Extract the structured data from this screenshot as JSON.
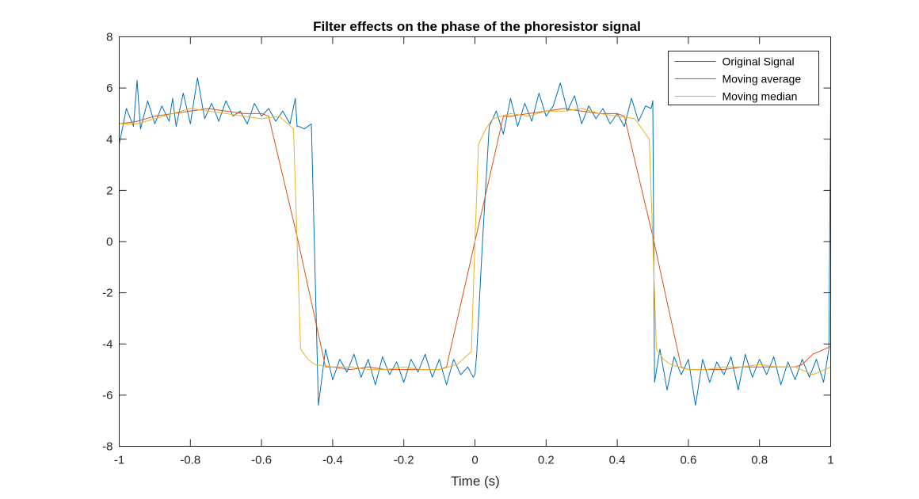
{
  "chart_data": {
    "type": "line",
    "title": "Filter effects on the phase of the phoresistor signal",
    "xlabel": "Time (s)",
    "ylabel": "",
    "xlim": [
      -1,
      1
    ],
    "ylim": [
      -8,
      8
    ],
    "xticks": [
      -1,
      -0.8,
      -0.6,
      -0.4,
      -0.2,
      0,
      0.2,
      0.4,
      0.6,
      0.8,
      1
    ],
    "yticks": [
      -8,
      -6,
      -4,
      -2,
      0,
      2,
      4,
      6,
      8
    ],
    "xtick_labels": [
      "-1",
      "-0.8",
      "-0.6",
      "-0.4",
      "-0.2",
      "0",
      "0.2",
      "0.4",
      "0.6",
      "0.8",
      "1"
    ],
    "ytick_labels": [
      "-8",
      "-6",
      "-4",
      "-2",
      "0",
      "2",
      "4",
      "6",
      "8"
    ],
    "grid": false,
    "legend_position": "top-right",
    "series": [
      {
        "name": "Original Signal",
        "color": "#0072BD",
        "x": [
          -1,
          -0.98,
          -0.96,
          -0.95,
          -0.94,
          -0.92,
          -0.9,
          -0.88,
          -0.86,
          -0.85,
          -0.84,
          -0.82,
          -0.8,
          -0.78,
          -0.76,
          -0.74,
          -0.72,
          -0.7,
          -0.68,
          -0.66,
          -0.64,
          -0.62,
          -0.6,
          -0.58,
          -0.56,
          -0.54,
          -0.52,
          -0.505,
          -0.5,
          -0.495,
          -0.48,
          -0.46,
          -0.44,
          -0.42,
          -0.4,
          -0.38,
          -0.36,
          -0.34,
          -0.32,
          -0.3,
          -0.28,
          -0.26,
          -0.24,
          -0.22,
          -0.2,
          -0.18,
          -0.16,
          -0.14,
          -0.12,
          -0.1,
          -0.08,
          -0.06,
          -0.04,
          -0.02,
          -0.005,
          0,
          0.005,
          0.02,
          0.04,
          0.06,
          0.08,
          0.1,
          0.12,
          0.14,
          0.16,
          0.18,
          0.2,
          0.22,
          0.24,
          0.26,
          0.28,
          0.3,
          0.32,
          0.34,
          0.36,
          0.38,
          0.4,
          0.42,
          0.44,
          0.46,
          0.48,
          0.495,
          0.5,
          0.505,
          0.52,
          0.54,
          0.56,
          0.58,
          0.6,
          0.62,
          0.64,
          0.66,
          0.68,
          0.7,
          0.72,
          0.74,
          0.76,
          0.78,
          0.8,
          0.82,
          0.84,
          0.86,
          0.88,
          0.9,
          0.92,
          0.94,
          0.96,
          0.98,
          0.995,
          1
        ],
        "y": [
          3.8,
          5.2,
          4.5,
          6.3,
          4.4,
          5.5,
          4.6,
          5.3,
          4.7,
          5.6,
          4.5,
          5.8,
          4.6,
          6.4,
          4.8,
          5.4,
          4.7,
          5.5,
          4.9,
          5.1,
          4.6,
          5.4,
          4.9,
          5.2,
          4.7,
          5.1,
          4.6,
          5.6,
          4.5,
          4.5,
          4.4,
          4.6,
          -6.4,
          -4.2,
          -5.4,
          -4.6,
          -5.1,
          -4.4,
          -5.3,
          -4.6,
          -5.6,
          -4.5,
          -5.2,
          -4.7,
          -5.5,
          -4.6,
          -5.1,
          -4.4,
          -5.3,
          -4.6,
          -5.6,
          -4.6,
          -5.2,
          -4.9,
          -5.3,
          -5.2,
          -4.4,
          -0.3,
          4.5,
          5.1,
          4.2,
          5.6,
          4.5,
          5.4,
          4.7,
          5.8,
          4.9,
          5.3,
          6.2,
          5.1,
          5.7,
          4.6,
          5.3,
          4.8,
          5.2,
          4.6,
          5.0,
          4.5,
          5.6,
          4.7,
          5.3,
          5.2,
          5.5,
          -5.5,
          -4.2,
          -5.8,
          -4.5,
          -5.2,
          -4.6,
          -6.4,
          -4.6,
          -5.5,
          -4.7,
          -5.2,
          -4.5,
          -5.8,
          -4.4,
          -5.3,
          -4.6,
          -5.2,
          -4.5,
          -5.6,
          -4.7,
          -5.4,
          -4.6,
          -5.3,
          -4.6,
          -5.5,
          -4.2,
          5.5
        ]
      },
      {
        "name": "Moving average",
        "color": "#D95319",
        "x": [
          -1,
          -0.95,
          -0.9,
          -0.85,
          -0.8,
          -0.75,
          -0.7,
          -0.65,
          -0.6,
          -0.58,
          -0.5,
          -0.42,
          -0.4,
          -0.35,
          -0.3,
          -0.25,
          -0.2,
          -0.15,
          -0.1,
          -0.08,
          0,
          0.08,
          0.1,
          0.15,
          0.2,
          0.25,
          0.3,
          0.35,
          0.4,
          0.42,
          0.5,
          0.58,
          0.6,
          0.65,
          0.7,
          0.75,
          0.8,
          0.85,
          0.9,
          0.92,
          0.95,
          1
        ],
        "y": [
          4.6,
          4.7,
          4.9,
          5.0,
          5.1,
          5.2,
          5.1,
          5.0,
          5.0,
          4.9,
          0.2,
          -4.9,
          -4.9,
          -5.0,
          -4.9,
          -5.0,
          -5.0,
          -5.0,
          -5.0,
          -4.9,
          0.0,
          4.9,
          4.9,
          5.0,
          5.1,
          5.2,
          5.1,
          5.0,
          5.0,
          4.9,
          0.2,
          -4.9,
          -5.0,
          -5.0,
          -5.0,
          -4.9,
          -4.9,
          -4.9,
          -4.9,
          -4.8,
          -4.4,
          -4.1
        ]
      },
      {
        "name": "Moving median",
        "color": "#EDB120",
        "x": [
          -1,
          -0.95,
          -0.9,
          -0.85,
          -0.8,
          -0.75,
          -0.7,
          -0.65,
          -0.6,
          -0.55,
          -0.51,
          -0.5,
          -0.49,
          -0.47,
          -0.45,
          -0.4,
          -0.35,
          -0.3,
          -0.25,
          -0.2,
          -0.15,
          -0.1,
          -0.05,
          -0.01,
          0,
          0.01,
          0.03,
          0.05,
          0.1,
          0.15,
          0.2,
          0.25,
          0.3,
          0.35,
          0.4,
          0.45,
          0.49,
          0.5,
          0.51,
          0.53,
          0.55,
          0.6,
          0.65,
          0.7,
          0.75,
          0.8,
          0.85,
          0.9,
          0.95,
          1
        ],
        "y": [
          4.6,
          4.6,
          4.8,
          5.0,
          5.2,
          5.1,
          5.0,
          4.9,
          4.8,
          4.9,
          4.4,
          0,
          -4.2,
          -4.6,
          -4.8,
          -4.9,
          -4.9,
          -5.0,
          -5.0,
          -4.9,
          -5.0,
          -5.0,
          -4.8,
          -4.3,
          0,
          3.8,
          4.4,
          4.8,
          5.0,
          4.9,
          5.1,
          5.1,
          5.2,
          5.0,
          4.9,
          4.8,
          4.0,
          0,
          -4.2,
          -4.6,
          -4.8,
          -5.0,
          -5.0,
          -4.9,
          -4.9,
          -4.8,
          -4.9,
          -4.9,
          -5.2,
          -4.9
        ]
      }
    ]
  }
}
